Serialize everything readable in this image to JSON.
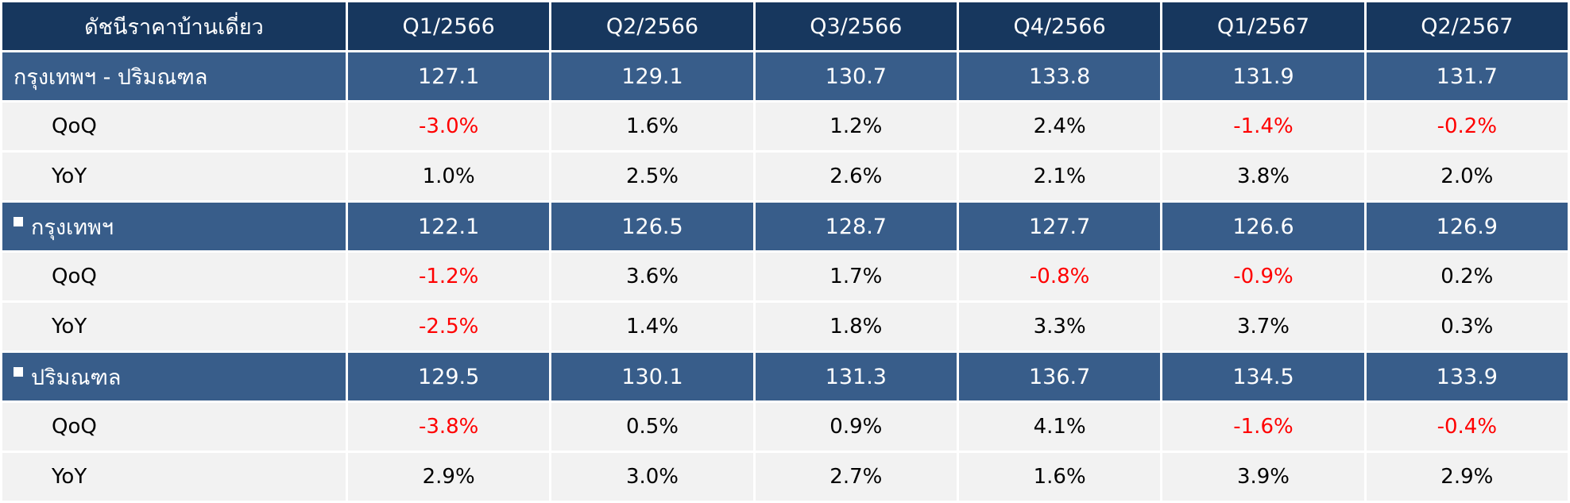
{
  "table": {
    "header": [
      "ดัชนีราคาบ้านเดี่ยว",
      "Q1/2566",
      "Q2/2566",
      "Q3/2566",
      "Q4/2566",
      "Q1/2567",
      "Q2/2567"
    ],
    "groups": [
      {
        "name": "กรุงเทพฯ - ปริมณฑล",
        "bullet": false,
        "values": [
          "127.1",
          "129.1",
          "130.7",
          "133.8",
          "131.9",
          "131.7"
        ],
        "rows": [
          {
            "label": "QoQ",
            "values": [
              "-3.0%",
              "1.6%",
              "1.2%",
              "2.4%",
              "-1.4%",
              "-0.2%"
            ]
          },
          {
            "label": "YoY",
            "values": [
              "1.0%",
              "2.5%",
              "2.6%",
              "2.1%",
              "3.8%",
              "2.0%"
            ]
          }
        ]
      },
      {
        "name": "กรุงเทพฯ",
        "bullet": true,
        "values": [
          "122.1",
          "126.5",
          "128.7",
          "127.7",
          "126.6",
          "126.9"
        ],
        "rows": [
          {
            "label": "QoQ",
            "values": [
              "-1.2%",
              "3.6%",
              "1.7%",
              "-0.8%",
              "-0.9%",
              "0.2%"
            ]
          },
          {
            "label": "YoY",
            "values": [
              "-2.5%",
              "1.4%",
              "1.8%",
              "3.3%",
              "3.7%",
              "0.3%"
            ]
          }
        ]
      },
      {
        "name": "ปริมณฑล",
        "bullet": true,
        "values": [
          "129.5",
          "130.1",
          "131.3",
          "136.7",
          "134.5",
          "133.9"
        ],
        "rows": [
          {
            "label": "QoQ",
            "values": [
              "-3.8%",
              "0.5%",
              "0.9%",
              "4.1%",
              "-1.6%",
              "-0.4%"
            ]
          },
          {
            "label": "YoY",
            "values": [
              "2.9%",
              "3.0%",
              "2.7%",
              "1.6%",
              "3.9%",
              "2.9%"
            ]
          }
        ]
      }
    ]
  },
  "colors": {
    "header_bg": "#17375e",
    "group_bg": "#385d8a",
    "row_bg": "#f2f2f2",
    "negative_text": "#ff0000"
  }
}
